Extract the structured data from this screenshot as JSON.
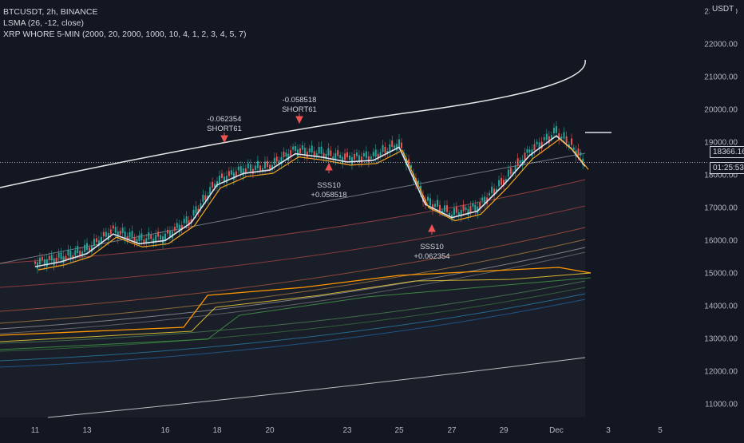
{
  "legend": {
    "symbol": "BTCUSDT, 2h, BINANCE",
    "lsma": "LSMA (26, -12, close)",
    "indicator": "XRP WHORE 5-MIN (2000, 20, 2000, 1000, 10, 4, 1, 2, 3, 4, 5, 7)"
  },
  "currency_tag": "USDT",
  "price_tag": "18366.16",
  "countdown_tag": "01:25:53",
  "colors": {
    "background": "#131722",
    "up": "#26a69a",
    "down": "#ef5350",
    "lsma": "#e0e3eb",
    "fast_ma": "#f5a623",
    "envelope": "#b2b5be"
  },
  "chart_data": {
    "type": "line",
    "title": "",
    "xlabel": "",
    "ylabel": "",
    "ylim": [
      10400,
      23100
    ],
    "y_ticks": [
      "11000.00",
      "12000.00",
      "13000.00",
      "14000.00",
      "15000.00",
      "16000.00",
      "17000.00",
      "18000.00",
      "19000.00",
      "20000.00",
      "21000.00",
      "22000.00",
      "23000.00"
    ],
    "x_ticks": [
      "11",
      "13",
      "16",
      "18",
      "20",
      "23",
      "25",
      "27",
      "29",
      "Dec",
      "3",
      "5"
    ],
    "current_price": 18366.16,
    "price_series": {
      "name": "BTCUSDT",
      "x": [
        "11",
        "12",
        "13",
        "14",
        "15",
        "16",
        "17",
        "18",
        "19",
        "20",
        "21",
        "22",
        "23",
        "24",
        "25",
        "26",
        "27",
        "28",
        "29",
        "30",
        "Dec",
        "1.5",
        "2"
      ],
      "y": [
        15300,
        15450,
        15700,
        16300,
        16000,
        16100,
        16650,
        17800,
        18150,
        18250,
        18750,
        18650,
        18500,
        18550,
        18950,
        17200,
        16800,
        17000,
        17800,
        18700,
        19300,
        18900,
        18366.16
      ]
    },
    "annotations": [
      {
        "label": "SHORT61",
        "value": "-0.062354",
        "x": "18"
      },
      {
        "label": "SHORT61",
        "value": "-0.058518",
        "x": "21"
      },
      {
        "label": "SSS10",
        "value": "+0.058518",
        "x": "22"
      },
      {
        "label": "SSS10",
        "value": "+0.062354",
        "x": "26"
      }
    ]
  }
}
